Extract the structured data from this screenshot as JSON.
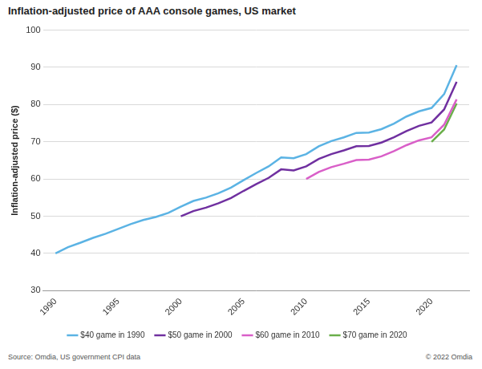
{
  "chart_data": {
    "type": "line",
    "title": "Inflation-adjusted price of AAA console games, US market",
    "y_label": "Inflation-adjusted price ($)",
    "source": "Source: Omdia, US government CPI data",
    "copyright": "© 2022 Omdia",
    "x": [
      1990,
      1991,
      1992,
      1993,
      1994,
      1995,
      1996,
      1997,
      1998,
      1999,
      2000,
      2001,
      2002,
      2003,
      2004,
      2005,
      2006,
      2007,
      2008,
      2009,
      2010,
      2011,
      2012,
      2013,
      2014,
      2015,
      2016,
      2017,
      2018,
      2019,
      2020,
      2021,
      2022
    ],
    "series": [
      {
        "name": "$40 game in 1990",
        "color": "#5bb3e4",
        "values": [
          40,
          41.7,
          42.9,
          44.2,
          45.3,
          46.6,
          47.9,
          49.0,
          49.8,
          50.9,
          52.6,
          54.1,
          55.0,
          56.2,
          57.7,
          59.7,
          61.6,
          63.4,
          65.8,
          65.6,
          66.7,
          68.8,
          70.2,
          71.2,
          72.4,
          72.5,
          73.4,
          74.9,
          76.8,
          78.2,
          79.1,
          82.8,
          90.6
        ]
      },
      {
        "name": "$50 game in 2000",
        "color": "#7030a0",
        "values": [
          null,
          null,
          null,
          null,
          null,
          null,
          null,
          null,
          null,
          null,
          50,
          51.4,
          52.3,
          53.5,
          54.9,
          56.8,
          58.6,
          60.3,
          62.6,
          62.3,
          63.4,
          65.4,
          66.7,
          67.7,
          68.8,
          68.9,
          69.8,
          71.2,
          72.9,
          74.3,
          75.2,
          78.7,
          86.1
        ]
      },
      {
        "name": "$60 game in 2010",
        "color": "#d95fc8",
        "values": [
          null,
          null,
          null,
          null,
          null,
          null,
          null,
          null,
          null,
          null,
          null,
          null,
          null,
          null,
          null,
          null,
          null,
          null,
          null,
          null,
          60,
          61.9,
          63.2,
          64.1,
          65.1,
          65.2,
          66.1,
          67.5,
          69.1,
          70.4,
          71.2,
          74.6,
          81.4
        ]
      },
      {
        "name": "$70 game in 2020",
        "color": "#6aaf4a",
        "values": [
          null,
          null,
          null,
          null,
          null,
          null,
          null,
          null,
          null,
          null,
          null,
          null,
          null,
          null,
          null,
          null,
          null,
          null,
          null,
          null,
          null,
          null,
          null,
          null,
          null,
          null,
          null,
          null,
          null,
          null,
          70,
          73.3,
          80.3
        ]
      }
    ],
    "xlim": [
      1989,
      2023
    ],
    "xticks": [
      1990,
      1995,
      2000,
      2005,
      2010,
      2015,
      2020
    ],
    "ylim": [
      30,
      100
    ],
    "yticks": [
      30,
      40,
      50,
      60,
      70,
      80,
      90,
      100
    ],
    "grid": true,
    "legend": "bottom"
  }
}
